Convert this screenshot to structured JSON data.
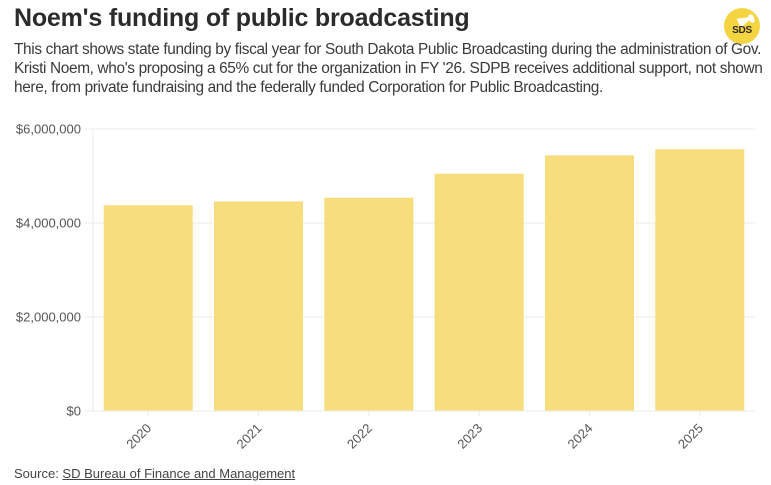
{
  "header": {
    "title": "Noem's funding of public broadcasting",
    "subtitle": "This chart shows state funding by fiscal year for South Dakota Public Broadcasting during the administration of Gov. Kristi Noem, who's proposing a 65% cut for the organization in FY '26. SDPB receives additional support, not shown here, from private fundraising and the federally funded Corporation for Public Broadcasting.",
    "logo_text_light": "SD",
    "logo_text_bold": "S",
    "logo_icon": "megaphone-icon"
  },
  "colors": {
    "bar": "#f7dd7b",
    "bar_edge": "#f5d76a",
    "grid": "#ebebeb",
    "logo": "#f5d442"
  },
  "chart_data": {
    "type": "bar",
    "title": "Noem's funding of public broadcasting",
    "xlabel": "",
    "ylabel": "",
    "categories": [
      "2020",
      "2021",
      "2022",
      "2023",
      "2024",
      "2025"
    ],
    "values": [
      4370000,
      4450000,
      4530000,
      5040000,
      5430000,
      5560000
    ],
    "ylim": [
      0,
      6000000
    ],
    "yticks": [
      0,
      2000000,
      4000000,
      6000000
    ],
    "ytick_labels": [
      "$0",
      "$2,000,000",
      "$4,000,000",
      "$6,000,000"
    ],
    "grid": true,
    "legend": "none",
    "xtick_rotation": -45
  },
  "footer": {
    "source_label": "Source: ",
    "source_link": "SD Bureau of Finance and Management"
  }
}
